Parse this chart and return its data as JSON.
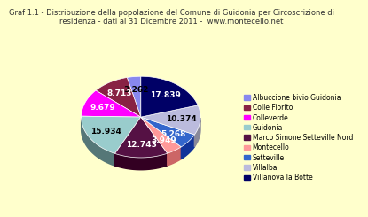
{
  "title": "Graf 1.1 - Distribuzione della popolazione del Comune di Guidonia per Circoscrizione di\nresidenza - dati al 31 Dicembre 2011 -  www.montecello.net",
  "labels": [
    "Albuccione bivio Guidonia",
    "Colle Fiorito",
    "Colleverde",
    "Guidonia",
    "Marco Simone Setteville Nord",
    "Montecello",
    "Setteville",
    "Villalba",
    "Villanova la Botte"
  ],
  "values": [
    3262,
    8713,
    9679,
    15934,
    12743,
    3949,
    5268,
    10374,
    17839
  ],
  "colors": [
    "#8888EE",
    "#882244",
    "#FF00FF",
    "#99CCCC",
    "#551144",
    "#FF9999",
    "#3366CC",
    "#BBBBDD",
    "#000066"
  ],
  "dark_colors": [
    "#5555AA",
    "#551122",
    "#AA00AA",
    "#557777",
    "#330022",
    "#CC6666",
    "#113399",
    "#888899",
    "#000033"
  ],
  "background_color": "#FFFFCC",
  "startangle": 90,
  "depth": 0.12,
  "title_fontsize": 6.0,
  "legend_fontsize": 5.5,
  "label_fontsize": 6.5
}
